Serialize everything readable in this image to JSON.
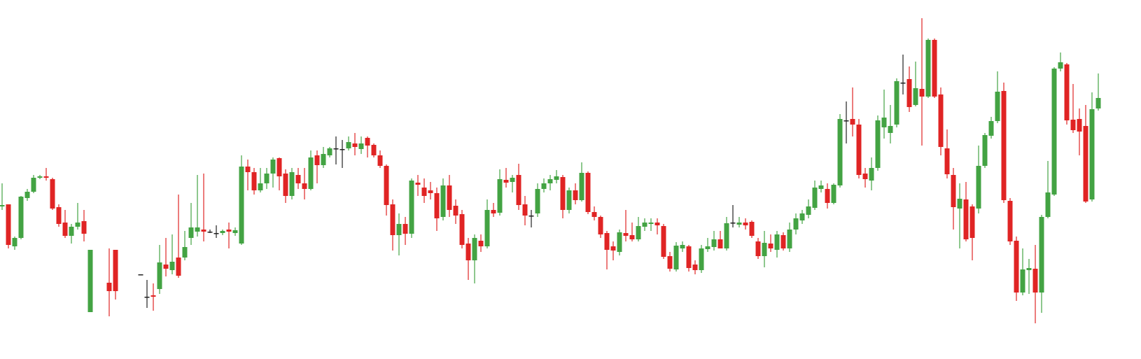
{
  "chart_data": {
    "type": "candlestick",
    "up_color": "#43a343",
    "down_color": "#e02424",
    "flat_color": "#222222",
    "ylim": [
      0,
      500
    ],
    "open": [
      205,
      208,
      148,
      160,
      217,
      226,
      246,
      248,
      244,
      204,
      182,
      163,
      176,
      184,
      54,
      null,
      null,
      96,
      143,
      null,
      null,
      null,
      108,
      76,
      78,
      87,
      122,
      114,
      132,
      132,
      160,
      169,
      172,
      169,
      167,
      167,
      172,
      167,
      152,
      262,
      254,
      228,
      238,
      252,
      274,
      252,
      220,
      250,
      238,
      230,
      278,
      264,
      278,
      288,
      287,
      288,
      295,
      287,
      303,
      293,
      278,
      263,
      208,
      164,
      180,
      166,
      239,
      232,
      228,
      224,
      190,
      235,
      206,
      194,
      152,
      128,
      156,
      148,
      200,
      196,
      243,
      240,
      250,
      208,
      192,
      195,
      230,
      238,
      243,
      247,
      200,
      228,
      214,
      253,
      197,
      190,
      167,
      148,
      140,
      167,
      164,
      158,
      176,
      180,
      182,
      177,
      134,
      115,
      145,
      148,
      122,
      114,
      144,
      147,
      158,
      145,
      182,
      179,
      182,
      183,
      155,
      134,
      152,
      143,
      164,
      145,
      172,
      185,
      193,
      203,
      230,
      230,
      210,
      235,
      328,
      330,
      322,
      252,
      242,
      260,
      318,
      310,
      322,
      382,
      387,
      350,
      373,
      362,
      443,
      365,
      288,
      250,
      202,
      215,
      205,
      202,
      263,
      306,
      327,
      370,
      213,
      156,
      82,
      114,
      116,
      82,
      190,
      222,
      402,
      408,
      329,
      330,
      320,
      215,
      345
    ],
    "high": [
      238,
      208,
      162,
      220,
      230,
      250,
      250,
      260,
      246,
      208,
      200,
      180,
      210,
      200,
      143,
      null,
      null,
      145,
      143,
      null,
      null,
      null,
      108,
      100,
      95,
      150,
      160,
      165,
      222,
      170,
      210,
      250,
      252,
      172,
      178,
      172,
      182,
      175,
      278,
      272,
      260,
      260,
      260,
      275,
      275,
      258,
      260,
      260,
      260,
      285,
      285,
      290,
      290,
      305,
      300,
      305,
      310,
      305,
      305,
      295,
      285,
      265,
      215,
      195,
      190,
      245,
      250,
      245,
      240,
      232,
      245,
      250,
      215,
      200,
      160,
      165,
      165,
      215,
      210,
      258,
      260,
      250,
      266,
      220,
      200,
      238,
      245,
      250,
      257,
      250,
      232,
      238,
      268,
      255,
      205,
      192,
      170,
      155,
      172,
      200,
      182,
      190,
      188,
      188,
      188,
      180,
      140,
      154,
      155,
      150,
      128,
      150,
      160,
      170,
      170,
      190,
      207,
      190,
      188,
      185,
      160,
      170,
      165,
      170,
      168,
      182,
      195,
      200,
      215,
      242,
      242,
      238,
      238,
      337,
      355,
      375,
      330,
      260,
      275,
      335,
      372,
      350,
      388,
      422,
      405,
      412,
      474,
      445,
      445,
      375,
      315,
      260,
      238,
      240,
      208,
      292,
      310,
      333,
      398,
      382,
      217,
      162,
      145,
      130,
      150,
      193,
      270,
      404,
      425,
      410,
      380,
      345,
      350,
      368,
      395
    ],
    "low": [
      200,
      145,
      143,
      158,
      213,
      224,
      244,
      242,
      200,
      176,
      160,
      152,
      172,
      155,
      54,
      null,
      null,
      48,
      72,
      null,
      null,
      null,
      108,
      60,
      56,
      80,
      105,
      108,
      103,
      128,
      150,
      162,
      155,
      167,
      160,
      164,
      145,
      163,
      150,
      228,
      222,
      225,
      230,
      232,
      228,
      210,
      215,
      230,
      215,
      228,
      238,
      260,
      275,
      265,
      260,
      285,
      278,
      280,
      275,
      275,
      260,
      192,
      142,
      135,
      150,
      160,
      220,
      210,
      215,
      170,
      185,
      190,
      180,
      145,
      100,
      95,
      140,
      145,
      190,
      192,
      232,
      225,
      200,
      178,
      175,
      190,
      225,
      228,
      238,
      188,
      195,
      208,
      212,
      194,
      185,
      160,
      115,
      128,
      135,
      155,
      155,
      155,
      170,
      170,
      165,
      130,
      112,
      112,
      140,
      112,
      108,
      110,
      140,
      142,
      145,
      142,
      175,
      175,
      172,
      160,
      130,
      118,
      140,
      132,
      142,
      140,
      165,
      180,
      188,
      200,
      225,
      202,
      208,
      232,
      295,
      305,
      245,
      232,
      228,
      256,
      302,
      295,
      318,
      365,
      340,
      348,
      292,
      360,
      360,
      278,
      245,
      172,
      145,
      155,
      128,
      195,
      260,
      302,
      324,
      210,
      150,
      70,
      78,
      80,
      38,
      53,
      188,
      220,
      398,
      322,
      310,
      278,
      210,
      212,
      342
    ],
    "close": [
      207,
      150,
      160,
      219,
      226,
      246,
      248,
      246,
      202,
      180,
      163,
      176,
      182,
      166,
      143,
      null,
      null,
      84,
      84,
      null,
      null,
      null,
      108,
      76,
      76,
      125,
      116,
      126,
      106,
      147,
      175,
      175,
      169,
      169,
      167,
      170,
      169,
      171,
      262,
      254,
      228,
      238,
      252,
      272,
      248,
      220,
      254,
      238,
      230,
      275,
      264,
      280,
      288,
      288,
      287,
      297,
      290,
      295,
      292,
      278,
      263,
      207,
      164,
      180,
      166,
      242,
      236,
      220,
      224,
      188,
      235,
      200,
      192,
      150,
      128,
      160,
      148,
      200,
      195,
      244,
      239,
      246,
      207,
      192,
      192,
      230,
      238,
      244,
      248,
      200,
      228,
      214,
      253,
      197,
      190,
      165,
      143,
      142,
      168,
      163,
      158,
      177,
      182,
      182,
      178,
      133,
      116,
      149,
      150,
      117,
      114,
      145,
      148,
      158,
      145,
      181,
      182,
      182,
      178,
      163,
      134,
      153,
      145,
      165,
      145,
      172,
      188,
      195,
      205,
      232,
      235,
      210,
      236,
      330,
      328,
      322,
      250,
      244,
      260,
      328,
      332,
      320,
      384,
      382,
      347,
      374,
      362,
      443,
      362,
      290,
      251,
      204,
      216,
      158,
      160,
      263,
      307,
      327,
      369,
      214,
      155,
      82,
      115,
      117,
      82,
      190,
      225,
      402,
      411,
      328,
      314,
      312,
      212,
      344,
      360
    ]
  }
}
